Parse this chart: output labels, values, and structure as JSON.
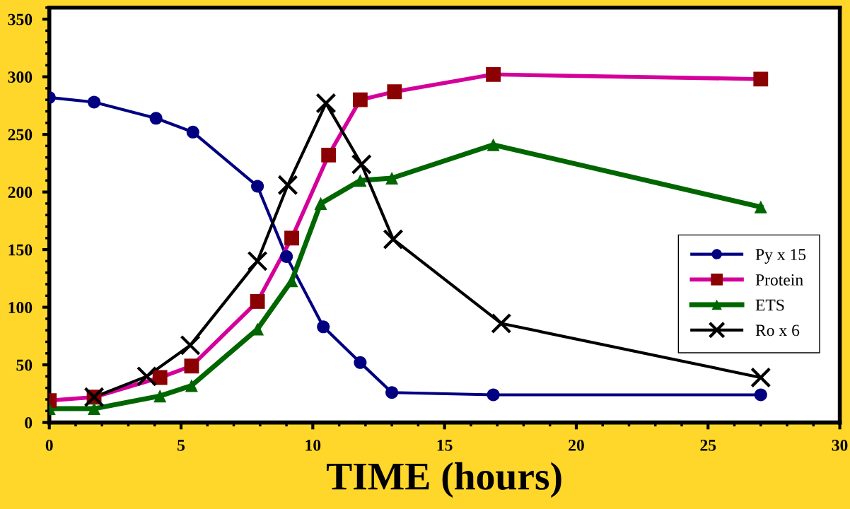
{
  "chart_data": {
    "type": "line",
    "xlabel": "TIME (hours)",
    "xlim": [
      0,
      30
    ],
    "xticks": [
      0,
      5,
      10,
      15,
      20,
      25,
      30
    ],
    "ylim": [
      0,
      360
    ],
    "yticks": [
      0,
      50,
      100,
      150,
      200,
      250,
      300,
      350
    ],
    "grid": false,
    "legend": "right",
    "series": [
      {
        "name": "Py x 15",
        "color": "#000080",
        "marker": "circle",
        "x": [
          0,
          1.7,
          4.05,
          5.45,
          7.9,
          9.0,
          10.4,
          11.8,
          13.0,
          16.85,
          27.0
        ],
        "values": [
          282,
          278,
          264,
          252,
          205,
          144,
          83,
          52,
          26,
          24,
          24
        ]
      },
      {
        "name": "Protein",
        "color": "#d4009a",
        "colors": [
          "#8b0000",
          "#8b0000",
          "#8b0000",
          "#8b0000",
          "#8b0000",
          "#8b0000",
          "#8b0000",
          "#8b0000",
          "#8b0000",
          "#8b0000",
          "#8b0000"
        ],
        "marker": "square",
        "x": [
          0,
          1.7,
          4.2,
          5.4,
          7.9,
          9.2,
          10.6,
          11.8,
          13.1,
          16.85,
          27.0
        ],
        "values": [
          19,
          22,
          39,
          49,
          105,
          160,
          232,
          280,
          287,
          302,
          298
        ]
      },
      {
        "name": "ETS",
        "color": "#006600",
        "marker": "triangle",
        "x": [
          0,
          1.7,
          4.2,
          5.4,
          7.9,
          9.2,
          10.3,
          11.8,
          13.0,
          16.85,
          27.0
        ],
        "values": [
          12,
          12,
          23,
          32,
          81,
          123,
          190,
          210,
          212,
          241,
          187
        ]
      },
      {
        "name": "Ro x 6",
        "color": "#000000",
        "marker": "cross",
        "x": [
          1.7,
          3.7,
          5.35,
          7.9,
          9.05,
          10.5,
          11.85,
          13.05,
          17.15,
          27.0
        ],
        "values": [
          22,
          40,
          67,
          140,
          206,
          277,
          224,
          159,
          86,
          39
        ]
      }
    ]
  }
}
